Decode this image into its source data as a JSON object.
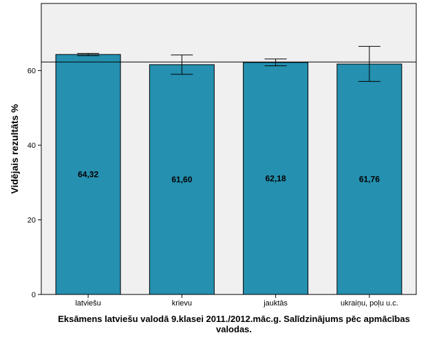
{
  "chart_data": {
    "type": "bar",
    "categories": [
      "latviešu",
      "krievu",
      "jauktās",
      "ukraiņu, poļu u.c."
    ],
    "values": [
      64.32,
      61.6,
      62.18,
      61.76
    ],
    "value_labels": [
      "64,32",
      "61,60",
      "62,18",
      "61,76"
    ],
    "error_bars": [
      {
        "low": 64.0,
        "high": 64.6
      },
      {
        "low": 59.0,
        "high": 64.2
      },
      {
        "low": 61.3,
        "high": 63.1
      },
      {
        "low": 57.1,
        "high": 66.5
      }
    ],
    "reference_line": 62.3,
    "ylabel": "Vidējais rezultāts %",
    "xlabel": "Eksāmens latviešu valodā 9.klasei 2011./2012.māc.g. Salīdzinājums pēc apmācības valodas.",
    "ylim": [
      0,
      78
    ],
    "yticks": [
      0,
      20,
      40,
      60
    ],
    "colors": {
      "bar": "#2590b0",
      "plot_bg": "#f0f0f0",
      "bar_edge": "#000000"
    }
  }
}
